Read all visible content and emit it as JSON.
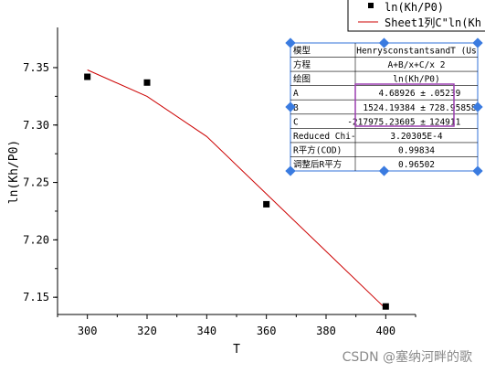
{
  "chart_data": {
    "type": "scatter",
    "xlabel": "T",
    "ylabel": "ln(Kh/P0)",
    "xlim": [
      290,
      410
    ],
    "ylim": [
      7.135,
      7.385
    ],
    "xticks": [
      300,
      320,
      340,
      360,
      380,
      400
    ],
    "yticks": [
      7.15,
      7.2,
      7.25,
      7.3,
      7.35
    ],
    "xtick_labels": [
      "300",
      "320",
      "340",
      "360",
      "380",
      "400"
    ],
    "ytick_labels": [
      "7.15",
      "7.20",
      "7.25",
      "7.30",
      "7.35"
    ],
    "grid": false,
    "series": [
      {
        "name": "ln(Kh/P0)",
        "kind": "scatter",
        "color": "#000000",
        "points": [
          {
            "x": 300,
            "y": 7.342
          },
          {
            "x": 320,
            "y": 7.337
          },
          {
            "x": 360,
            "y": 7.231
          },
          {
            "x": 400,
            "y": 7.142
          }
        ]
      },
      {
        "name": "Sheet1列C\"ln(Kh",
        "kind": "line",
        "color": "#cc0000",
        "points": [
          {
            "x": 300,
            "y": 7.348
          },
          {
            "x": 320,
            "y": 7.325
          },
          {
            "x": 340,
            "y": 7.29
          },
          {
            "x": 360,
            "y": 7.24
          },
          {
            "x": 380,
            "y": 7.19
          },
          {
            "x": 400,
            "y": 7.14
          }
        ]
      }
    ],
    "legend": {
      "placement": "top-right",
      "entries": [
        "ln(Kh/P0)",
        "Sheet1列C\"ln(Kh"
      ]
    }
  },
  "fit_table": {
    "rows": [
      [
        "模型",
        "HenrysconstantsandT (Us"
      ],
      [
        "方程",
        "A+B/x+C/x 2"
      ],
      [
        "绘图",
        "ln(Kh/P0)"
      ],
      [
        "A",
        "4.68926 ±",
        ".05239"
      ],
      [
        "B",
        "1524.19384 ±",
        "728.95858"
      ],
      [
        "C",
        "-217975.23605 ±",
        "124911"
      ],
      [
        "Reduced Chi-",
        "3.20305E-4"
      ],
      [
        "R平方(COD)",
        "0.99834"
      ],
      [
        "调整后R平方",
        "0.96502"
      ]
    ]
  },
  "watermark": "CSDN @塞纳河畔的歌"
}
